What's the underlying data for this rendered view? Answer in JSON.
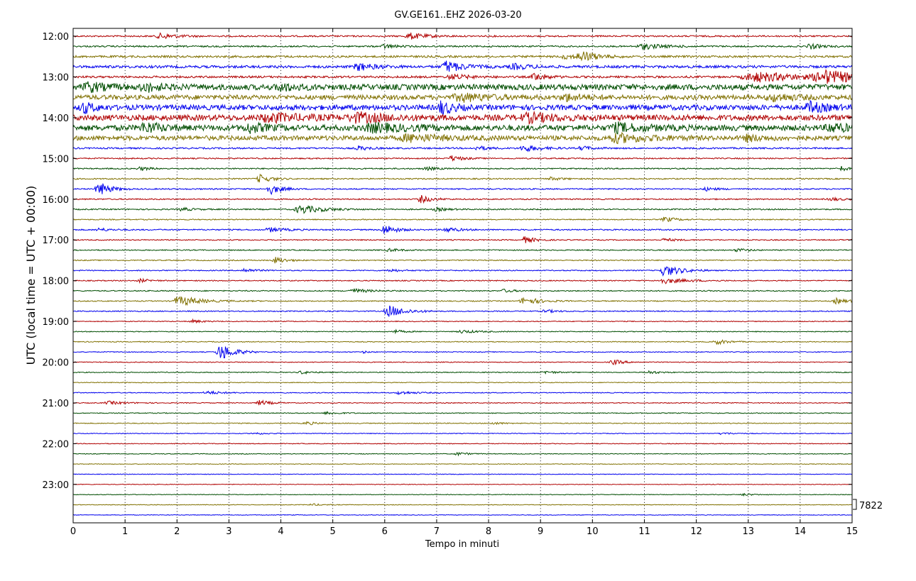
{
  "chart_data": {
    "type": "line",
    "title": "GV.GE161..EHZ 2026-03-20",
    "xlabel": "Tempo in minuti",
    "ylabel": "UTC (local time = UTC + 00:00)",
    "xlim": [
      0,
      15
    ],
    "x_ticks": [
      "0",
      "1",
      "2",
      "3",
      "4",
      "5",
      "6",
      "7",
      "8",
      "9",
      "10",
      "11",
      "12",
      "13",
      "14",
      "15"
    ],
    "y_ticks": [
      "12:00",
      "13:00",
      "14:00",
      "15:00",
      "16:00",
      "17:00",
      "18:00",
      "19:00",
      "20:00",
      "21:00",
      "22:00",
      "23:00"
    ],
    "grid": "vertical-dotted",
    "row_start": "12:00",
    "row_interval_minutes": 15,
    "scale_label": "7822",
    "colors": [
      "#b00000",
      "#004d00",
      "#807000",
      "#0000ee"
    ],
    "rows": [
      {
        "start": "12:00",
        "noise": 0.15,
        "events": [
          [
            1.7,
            0.5,
            0.3
          ],
          [
            6.5,
            0.6,
            0.3
          ]
        ]
      },
      {
        "start": "12:15",
        "noise": 0.15,
        "events": [
          [
            6.0,
            0.4,
            0.2
          ],
          [
            11.0,
            0.5,
            0.4
          ],
          [
            14.2,
            0.5,
            0.2
          ]
        ]
      },
      {
        "start": "12:30",
        "noise": 0.2,
        "events": [
          [
            9.8,
            0.9,
            0.3
          ],
          [
            9.5,
            0.4,
            0.3
          ]
        ]
      },
      {
        "start": "12:45",
        "noise": 0.25,
        "events": [
          [
            5.5,
            0.7,
            0.3
          ],
          [
            7.2,
            1.1,
            0.3
          ],
          [
            8.5,
            0.5,
            0.3
          ]
        ]
      },
      {
        "start": "13:00",
        "noise": 0.2,
        "events": [
          [
            7.3,
            0.5,
            0.3
          ],
          [
            8.9,
            0.8,
            0.2
          ],
          [
            13.2,
            0.9,
            0.9
          ],
          [
            14.5,
            1.1,
            0.7
          ]
        ]
      },
      {
        "start": "13:15",
        "noise": 0.55,
        "events": [
          [
            0.3,
            0.8,
            0.3
          ],
          [
            1.4,
            0.7,
            0.3
          ],
          [
            4.0,
            0.6,
            0.3
          ]
        ]
      },
      {
        "start": "13:30",
        "noise": 0.45,
        "events": [
          [
            7.5,
            0.7,
            0.5
          ],
          [
            9.5,
            0.6,
            0.3
          ],
          [
            13.5,
            0.6,
            0.4
          ]
        ]
      },
      {
        "start": "13:45",
        "noise": 0.5,
        "events": [
          [
            0.2,
            1.0,
            0.2
          ],
          [
            7.1,
            1.3,
            0.2
          ],
          [
            14.2,
            0.9,
            0.3
          ]
        ]
      },
      {
        "start": "14:00",
        "noise": 0.55,
        "events": [
          [
            3.8,
            0.7,
            0.6
          ],
          [
            5.5,
            0.7,
            0.6
          ],
          [
            8.8,
            0.7,
            0.5
          ]
        ]
      },
      {
        "start": "14:15",
        "noise": 0.55,
        "events": [
          [
            1.4,
            0.9,
            0.3
          ],
          [
            3.4,
            0.8,
            0.3
          ],
          [
            5.8,
            0.7,
            0.6
          ],
          [
            10.5,
            0.7,
            0.5
          ],
          [
            14.6,
            0.8,
            0.3
          ]
        ]
      },
      {
        "start": "14:30",
        "noise": 0.45,
        "events": [
          [
            6.5,
            0.6,
            0.6
          ],
          [
            10.5,
            0.7,
            0.6
          ],
          [
            13.0,
            0.5,
            0.3
          ]
        ]
      },
      {
        "start": "14:45",
        "noise": 0.15,
        "events": [
          [
            5.5,
            0.4,
            0.2
          ],
          [
            7.8,
            0.4,
            0.2
          ],
          [
            8.7,
            0.6,
            0.3
          ],
          [
            9.8,
            0.4,
            0.2
          ]
        ]
      },
      {
        "start": "15:00",
        "noise": 0.12,
        "events": [
          [
            7.3,
            0.5,
            0.2
          ]
        ]
      },
      {
        "start": "15:15",
        "noise": 0.12,
        "events": [
          [
            1.3,
            0.3,
            0.2
          ],
          [
            6.8,
            0.3,
            0.2
          ],
          [
            14.8,
            0.5,
            0.1
          ]
        ]
      },
      {
        "start": "15:30",
        "noise": 0.12,
        "events": [
          [
            3.6,
            0.8,
            0.2
          ],
          [
            9.2,
            0.3,
            0.2
          ]
        ]
      },
      {
        "start": "15:45",
        "noise": 0.12,
        "events": [
          [
            0.5,
            1.4,
            0.2
          ],
          [
            3.8,
            1.0,
            0.2
          ],
          [
            12.2,
            0.3,
            0.2
          ]
        ]
      },
      {
        "start": "16:00",
        "noise": 0.12,
        "events": [
          [
            6.7,
            0.7,
            0.2
          ],
          [
            14.6,
            0.3,
            0.2
          ]
        ]
      },
      {
        "start": "16:15",
        "noise": 0.12,
        "events": [
          [
            4.4,
            0.8,
            0.4
          ],
          [
            2.1,
            0.3,
            0.2
          ],
          [
            7.0,
            0.3,
            0.2
          ]
        ]
      },
      {
        "start": "16:30",
        "noise": 0.1,
        "events": [
          [
            11.4,
            0.5,
            0.2
          ]
        ]
      },
      {
        "start": "16:45",
        "noise": 0.12,
        "events": [
          [
            0.5,
            0.3,
            0.2
          ],
          [
            3.8,
            0.4,
            0.3
          ],
          [
            6.0,
            1.0,
            0.2
          ],
          [
            7.2,
            0.5,
            0.2
          ]
        ]
      },
      {
        "start": "17:00",
        "noise": 0.1,
        "events": [
          [
            8.7,
            0.6,
            0.2
          ],
          [
            11.4,
            0.3,
            0.2
          ]
        ]
      },
      {
        "start": "17:15",
        "noise": 0.1,
        "events": [
          [
            6.1,
            0.3,
            0.2
          ],
          [
            12.8,
            0.3,
            0.2
          ]
        ]
      },
      {
        "start": "17:30",
        "noise": 0.1,
        "events": [
          [
            3.9,
            0.6,
            0.2
          ]
        ]
      },
      {
        "start": "17:45",
        "noise": 0.1,
        "events": [
          [
            3.3,
            0.4,
            0.2
          ],
          [
            6.1,
            0.3,
            0.2
          ],
          [
            11.4,
            1.1,
            0.3
          ]
        ]
      },
      {
        "start": "18:00",
        "noise": 0.1,
        "events": [
          [
            1.3,
            0.3,
            0.2
          ],
          [
            11.4,
            0.5,
            0.4
          ]
        ]
      },
      {
        "start": "18:15",
        "noise": 0.1,
        "events": [
          [
            5.4,
            0.4,
            0.3
          ],
          [
            8.3,
            0.3,
            0.2
          ]
        ]
      },
      {
        "start": "18:30",
        "noise": 0.1,
        "events": [
          [
            2.0,
            0.8,
            0.2
          ],
          [
            2.2,
            0.4,
            0.5
          ],
          [
            8.7,
            0.7,
            0.3
          ],
          [
            14.7,
            0.5,
            0.2
          ]
        ]
      },
      {
        "start": "18:45",
        "noise": 0.1,
        "events": [
          [
            6.1,
            1.1,
            0.3
          ],
          [
            9.1,
            0.3,
            0.2
          ]
        ]
      },
      {
        "start": "19:00",
        "noise": 0.08,
        "events": [
          [
            2.3,
            0.3,
            0.2
          ]
        ]
      },
      {
        "start": "19:15",
        "noise": 0.08,
        "events": [
          [
            6.2,
            0.3,
            0.2
          ],
          [
            7.5,
            0.3,
            0.3
          ]
        ]
      },
      {
        "start": "19:30",
        "noise": 0.08,
        "events": [
          [
            12.4,
            0.5,
            0.2
          ]
        ]
      },
      {
        "start": "19:45",
        "noise": 0.08,
        "events": [
          [
            2.85,
            1.6,
            0.25
          ],
          [
            5.6,
            0.2,
            0.1
          ]
        ]
      },
      {
        "start": "20:00",
        "noise": 0.08,
        "events": [
          [
            10.4,
            0.5,
            0.2
          ]
        ]
      },
      {
        "start": "20:15",
        "noise": 0.08,
        "events": [
          [
            4.4,
            0.3,
            0.2
          ],
          [
            9.1,
            0.3,
            0.2
          ],
          [
            11.1,
            0.3,
            0.2
          ]
        ]
      },
      {
        "start": "20:30",
        "noise": 0.07,
        "events": []
      },
      {
        "start": "20:45",
        "noise": 0.08,
        "events": [
          [
            2.6,
            0.3,
            0.3
          ],
          [
            6.3,
            0.3,
            0.3
          ]
        ]
      },
      {
        "start": "21:00",
        "noise": 0.08,
        "events": [
          [
            0.7,
            0.3,
            0.3
          ],
          [
            3.6,
            0.5,
            0.2
          ]
        ]
      },
      {
        "start": "21:15",
        "noise": 0.08,
        "events": [
          [
            4.9,
            0.3,
            0.2
          ]
        ]
      },
      {
        "start": "21:30",
        "noise": 0.08,
        "events": [
          [
            4.5,
            0.3,
            0.2
          ],
          [
            8.1,
            0.2,
            0.2
          ]
        ]
      },
      {
        "start": "21:45",
        "noise": 0.07,
        "events": [
          [
            3.5,
            0.2,
            0.2
          ],
          [
            12.5,
            0.2,
            0.2
          ]
        ]
      },
      {
        "start": "22:00",
        "noise": 0.07,
        "events": []
      },
      {
        "start": "22:15",
        "noise": 0.07,
        "events": [
          [
            7.4,
            0.3,
            0.2
          ]
        ]
      },
      {
        "start": "22:30",
        "noise": 0.06,
        "events": []
      },
      {
        "start": "22:45",
        "noise": 0.06,
        "events": []
      },
      {
        "start": "23:00",
        "noise": 0.06,
        "events": []
      },
      {
        "start": "23:15",
        "noise": 0.06,
        "events": [
          [
            12.9,
            0.2,
            0.2
          ]
        ]
      },
      {
        "start": "23:30",
        "noise": 0.06,
        "events": [
          [
            4.6,
            0.2,
            0.2
          ]
        ]
      },
      {
        "start": "23:45",
        "noise": 0.06,
        "events": []
      }
    ]
  }
}
